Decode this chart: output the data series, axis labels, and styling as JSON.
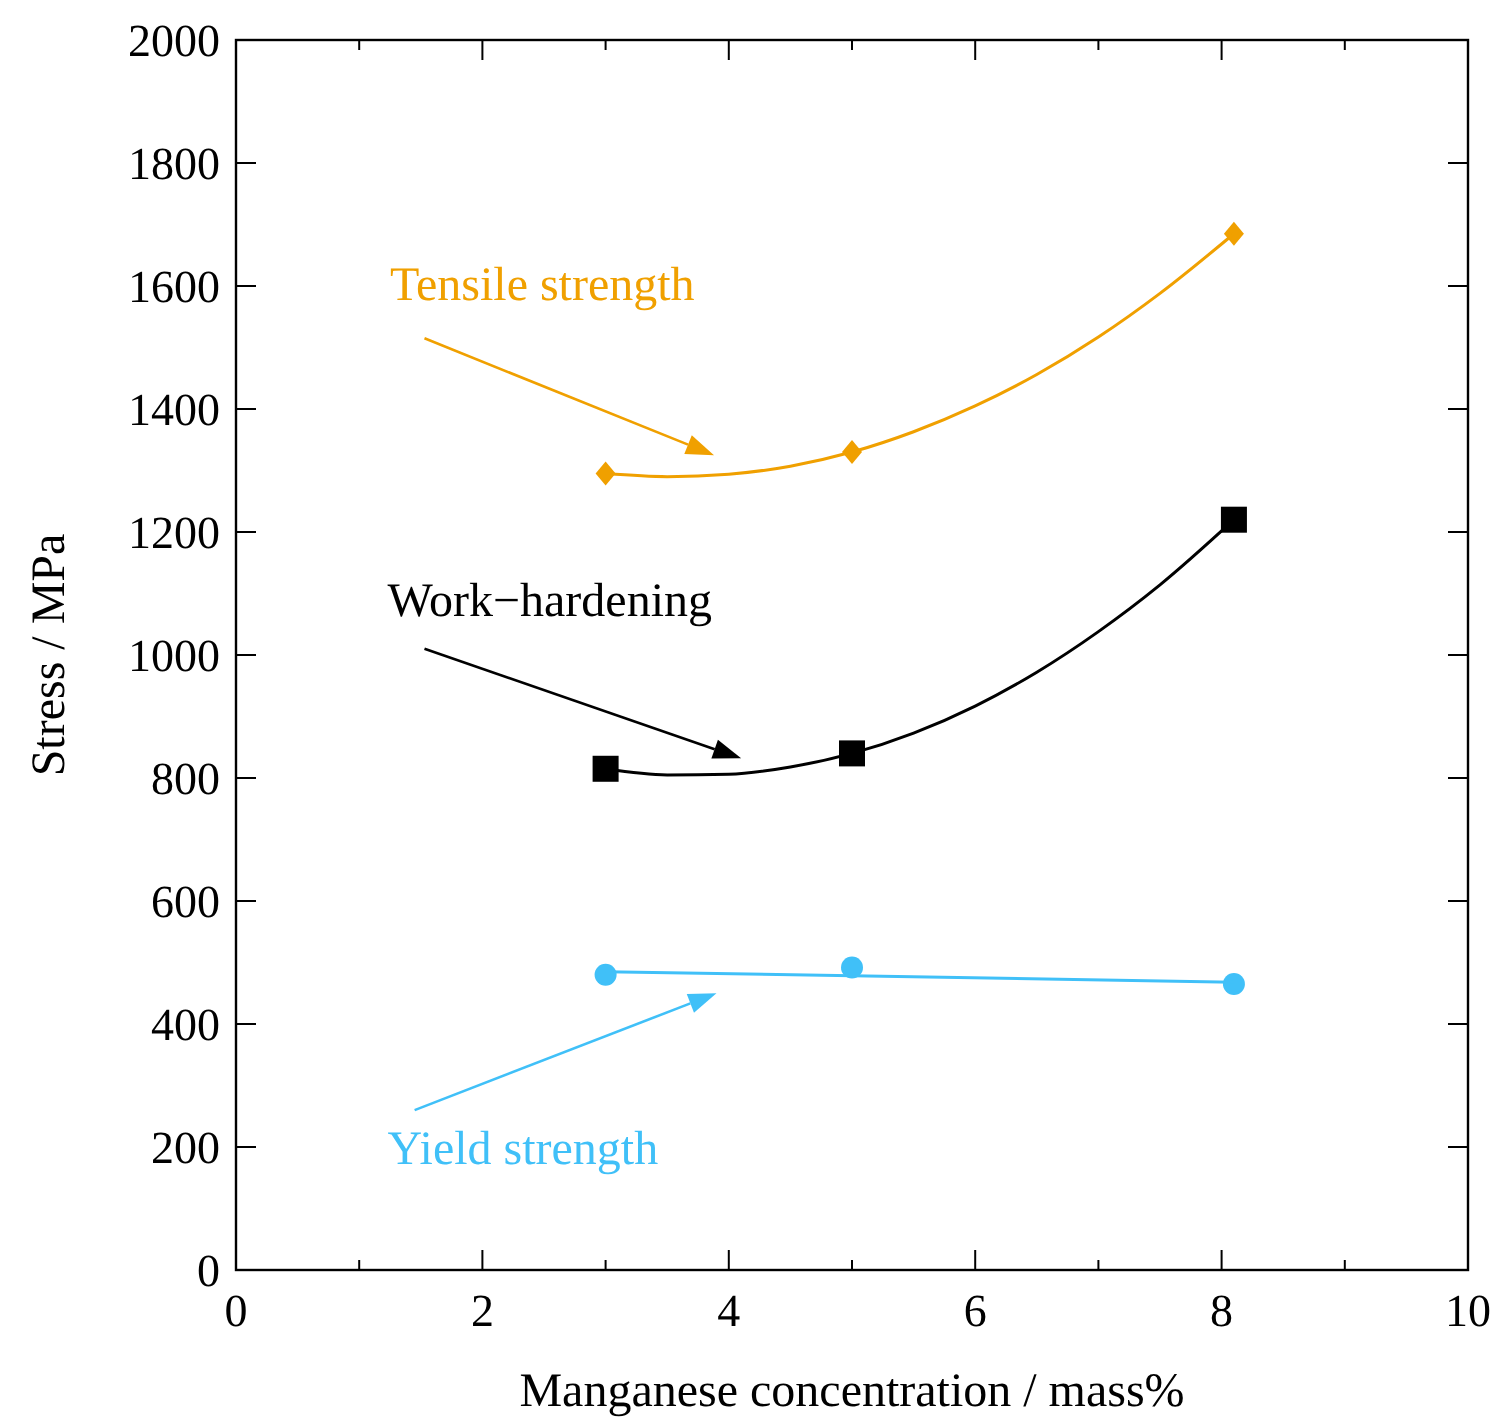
{
  "chart_data": {
    "type": "scatter",
    "xlabel": "Manganese concentration / mass%",
    "ylabel": "Stress / MPa",
    "xlim": [
      0,
      10
    ],
    "xticks": [
      0,
      2,
      4,
      6,
      8,
      10
    ],
    "ylim": [
      0,
      2000
    ],
    "yticks": [
      0,
      200,
      400,
      600,
      800,
      1000,
      1200,
      1400,
      1600,
      1800,
      2000
    ],
    "grid": false,
    "series": [
      {
        "name": "Tensile strength",
        "marker": "diamond",
        "color": "#f0a000",
        "x": [
          3,
          5,
          8.1
        ],
        "values": [
          1295,
          1330,
          1685
        ]
      },
      {
        "type": "line",
        "marker": "none",
        "color": "#f0a000",
        "x": [
          3,
          3.5,
          4,
          4.5,
          5,
          5.5,
          6,
          6.5,
          7,
          7.5,
          8.1
        ],
        "values": [
          1295,
          1290,
          1294,
          1307,
          1330,
          1363,
          1405,
          1456,
          1517,
          1588,
          1685
        ]
      },
      {
        "name": "Work−hardening",
        "marker": "square",
        "color": "#000000",
        "x": [
          3,
          5,
          8.1
        ],
        "values": [
          815,
          840,
          1220
        ]
      },
      {
        "type": "line",
        "marker": "none",
        "color": "#000000",
        "x": [
          3,
          3.5,
          4,
          4.5,
          5,
          5.5,
          6,
          6.5,
          7,
          7.5,
          8.1
        ],
        "values": [
          815,
          805,
          806,
          818,
          840,
          873,
          917,
          972,
          1038,
          1114,
          1220
        ]
      },
      {
        "name": "Yield strength",
        "marker": "circle",
        "color": "#40c0f8",
        "x": [
          3,
          5,
          8.1
        ],
        "values": [
          480,
          492,
          465
        ]
      },
      {
        "type": "line",
        "marker": "none",
        "color": "#40c0f8",
        "x": [
          3,
          8.1
        ],
        "values": [
          485,
          468
        ]
      }
    ]
  }
}
